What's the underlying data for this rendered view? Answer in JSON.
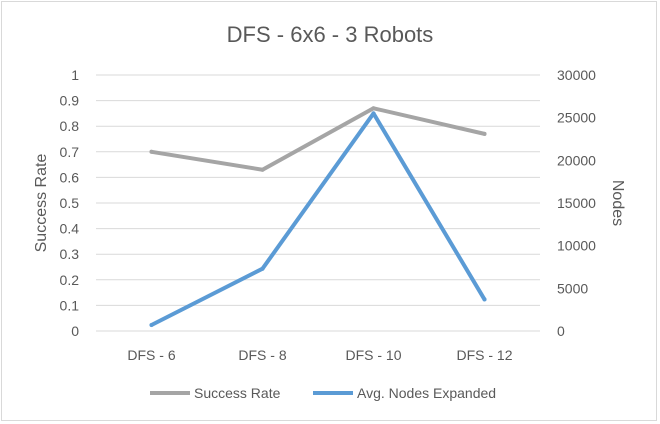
{
  "chart_data": {
    "type": "line",
    "title": "DFS - 6x6 - 3 Robots",
    "categories": [
      "DFS - 6",
      "DFS - 8",
      "DFS - 10",
      "DFS - 12"
    ],
    "series": [
      {
        "name": "Success Rate",
        "axis": "left",
        "color": "#a5a5a5",
        "values": [
          0.7,
          0.63,
          0.87,
          0.77
        ]
      },
      {
        "name": "Avg. Nodes Expanded",
        "axis": "right",
        "color": "#5b9bd5",
        "values": [
          700,
          7300,
          25500,
          3700
        ]
      }
    ],
    "ylabel": "Success Rate",
    "ylabel_right": "Nodes",
    "ylim": [
      0,
      1
    ],
    "ylim_right": [
      0,
      30000
    ],
    "yticks": [
      "0",
      "0.1",
      "0.2",
      "0.3",
      "0.4",
      "0.5",
      "0.6",
      "0.7",
      "0.8",
      "0.9",
      "1"
    ],
    "yticks_right": [
      "0",
      "5000",
      "10000",
      "15000",
      "20000",
      "25000",
      "30000"
    ],
    "grid": true,
    "legend": "bottom"
  }
}
